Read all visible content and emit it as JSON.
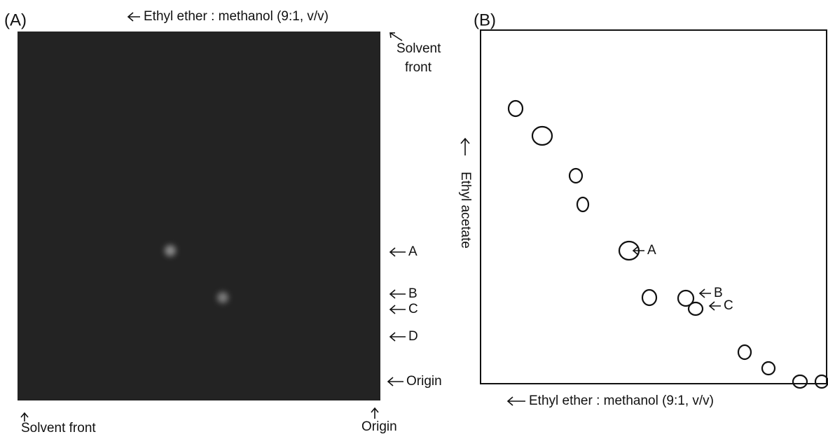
{
  "panel_a": {
    "label": "(A)",
    "top_axis": "Ethyl ether : methanol (9:1, v/v)",
    "solvent_front_top": [
      "Solvent",
      "front"
    ],
    "spot_labels": [
      "A",
      "B",
      "C",
      "D",
      "Origin"
    ],
    "bottom_solvent_front": "Solvent front",
    "bottom_origin": "Origin"
  },
  "panel_b": {
    "label": "(B)",
    "x_axis": "Ethyl ether : methanol (9:1, v/v)",
    "y_axis": "Ethyl acetate",
    "spot_labels": [
      "A",
      "B",
      "C"
    ]
  }
}
